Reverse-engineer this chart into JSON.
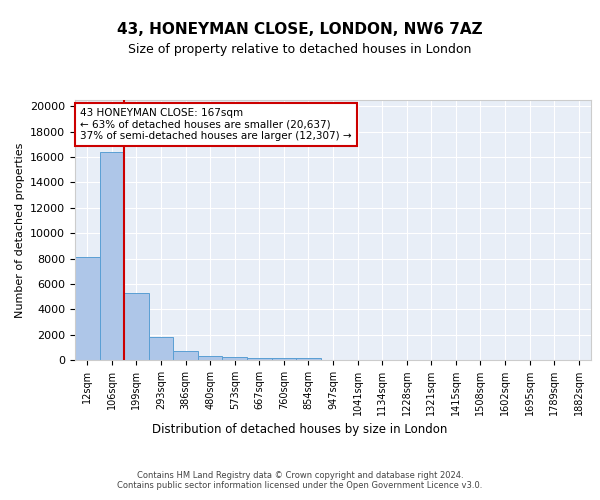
{
  "title1": "43, HONEYMAN CLOSE, LONDON, NW6 7AZ",
  "title2": "Size of property relative to detached houses in London",
  "xlabel": "Distribution of detached houses by size in London",
  "ylabel": "Number of detached properties",
  "bar_labels": [
    "12sqm",
    "106sqm",
    "199sqm",
    "293sqm",
    "386sqm",
    "480sqm",
    "573sqm",
    "667sqm",
    "760sqm",
    "854sqm",
    "947sqm",
    "1041sqm",
    "1134sqm",
    "1228sqm",
    "1321sqm",
    "1415sqm",
    "1508sqm",
    "1602sqm",
    "1695sqm",
    "1789sqm",
    "1882sqm"
  ],
  "bar_values": [
    8100,
    16400,
    5300,
    1850,
    700,
    320,
    220,
    175,
    155,
    140,
    0,
    0,
    0,
    0,
    0,
    0,
    0,
    0,
    0,
    0,
    0
  ],
  "bar_color": "#aec6e8",
  "bar_edge_color": "#5a9fd4",
  "background_color": "#e8eef7",
  "grid_color": "#ffffff",
  "vline_color": "#cc0000",
  "annotation_box_text": "43 HONEYMAN CLOSE: 167sqm\n← 63% of detached houses are smaller (20,637)\n37% of semi-detached houses are larger (12,307) →",
  "annotation_box_color": "#cc0000",
  "ylim": [
    0,
    20500
  ],
  "yticks": [
    0,
    2000,
    4000,
    6000,
    8000,
    10000,
    12000,
    14000,
    16000,
    18000,
    20000
  ],
  "footer_text": "Contains HM Land Registry data © Crown copyright and database right 2024.\nContains public sector information licensed under the Open Government Licence v3.0.",
  "title1_fontsize": 11,
  "title2_fontsize": 9
}
